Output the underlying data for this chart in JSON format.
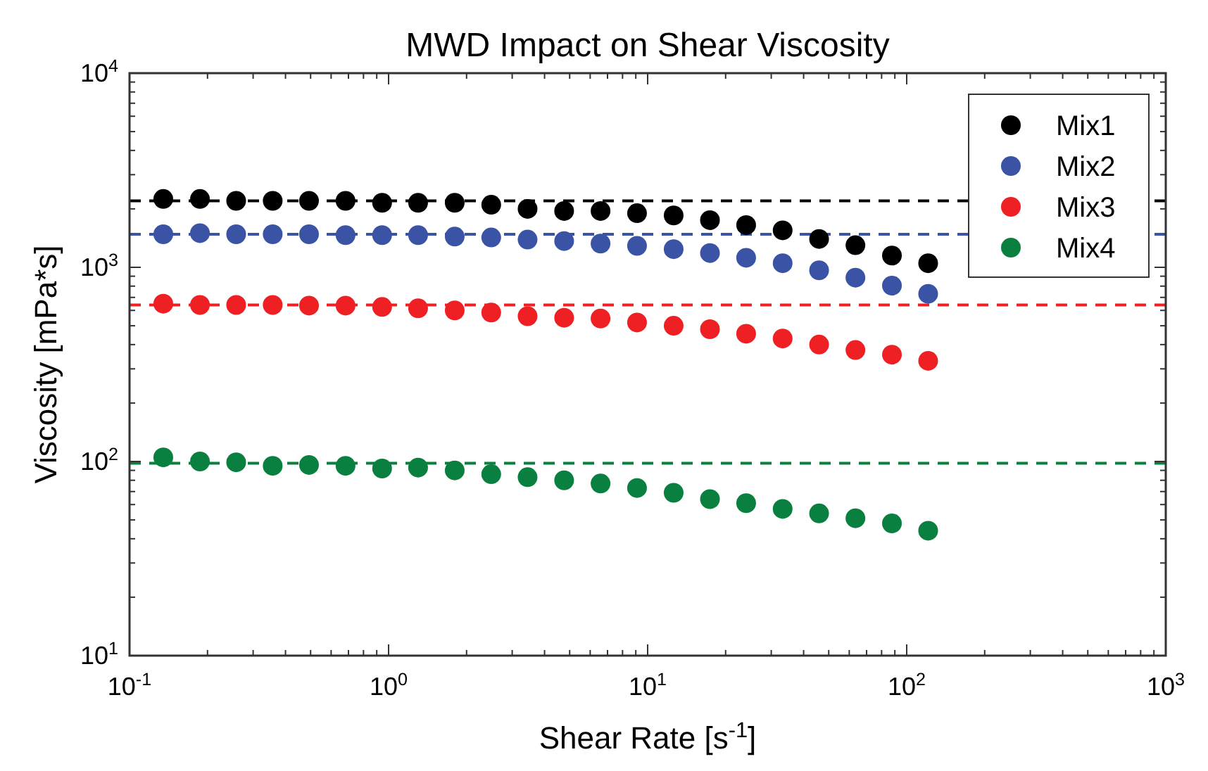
{
  "chart_data": {
    "type": "scatter",
    "title": "MWD Impact on Shear Viscosity",
    "xlabel": "Shear Rate [s$^{-1}$]",
    "ylabel": "Viscosity [mPa*s]",
    "log": "xy",
    "xlim": [
      0.1,
      1000
    ],
    "ylim": [
      10,
      10000
    ],
    "xticks": [
      {
        "value": 0.1,
        "label": "10$^{-1}$"
      },
      {
        "value": 1,
        "label": "10$^{0}$"
      },
      {
        "value": 10,
        "label": "10$^{1}$"
      },
      {
        "value": 100,
        "label": "10$^{2}$"
      },
      {
        "value": 1000,
        "label": "10$^{3}$"
      }
    ],
    "yticks": [
      {
        "value": 10,
        "label": "10$^{1}$"
      },
      {
        "value": 100,
        "label": "10$^{2}$"
      },
      {
        "value": 1000,
        "label": "10$^{3}$"
      },
      {
        "value": 10000,
        "label": "10$^{4}$"
      }
    ],
    "x": [
      0.135,
      0.187,
      0.258,
      0.357,
      0.493,
      0.682,
      0.944,
      1.3,
      1.8,
      2.49,
      3.44,
      4.76,
      6.58,
      9.1,
      12.6,
      17.4,
      24,
      33.2,
      45.9,
      63.4,
      87.7,
      121
    ],
    "marker": "circle",
    "grid": false,
    "legend": "top right",
    "series": [
      {
        "name": "Mix1",
        "color": "#000000",
        "values": [
          2250,
          2250,
          2200,
          2200,
          2200,
          2200,
          2150,
          2150,
          2150,
          2100,
          2000,
          1950,
          1950,
          1900,
          1850,
          1750,
          1650,
          1550,
          1400,
          1300,
          1150,
          1050
        ]
      },
      {
        "name": "Mix2",
        "color": "#3a53a4",
        "values": [
          1480,
          1500,
          1480,
          1480,
          1480,
          1465,
          1465,
          1465,
          1440,
          1425,
          1390,
          1365,
          1325,
          1290,
          1240,
          1185,
          1120,
          1050,
          965,
          885,
          805,
          730
        ]
      },
      {
        "name": "Mix3",
        "color": "#ee2024",
        "values": [
          650,
          640,
          640,
          640,
          635,
          635,
          625,
          615,
          600,
          585,
          560,
          550,
          545,
          520,
          500,
          480,
          455,
          430,
          400,
          375,
          355,
          330
        ]
      },
      {
        "name": "Mix4",
        "color": "#0a8040",
        "values": [
          105,
          100,
          99,
          95,
          96,
          95,
          92,
          93,
          90,
          86,
          83,
          80,
          77,
          73,
          69,
          64,
          61,
          57,
          54,
          51,
          48,
          44
        ]
      }
    ],
    "ref_lines": [
      {
        "axis": "y",
        "value": 2200,
        "color": "#000000",
        "line_style": "dashed"
      },
      {
        "axis": "y",
        "value": 1480,
        "color": "#3a53a4",
        "line_style": "dashed"
      },
      {
        "axis": "y",
        "value": 640,
        "color": "#ee2024",
        "line_style": "dashed"
      },
      {
        "axis": "y",
        "value": 98,
        "color": "#0a8040",
        "line_style": "dashed"
      }
    ]
  }
}
